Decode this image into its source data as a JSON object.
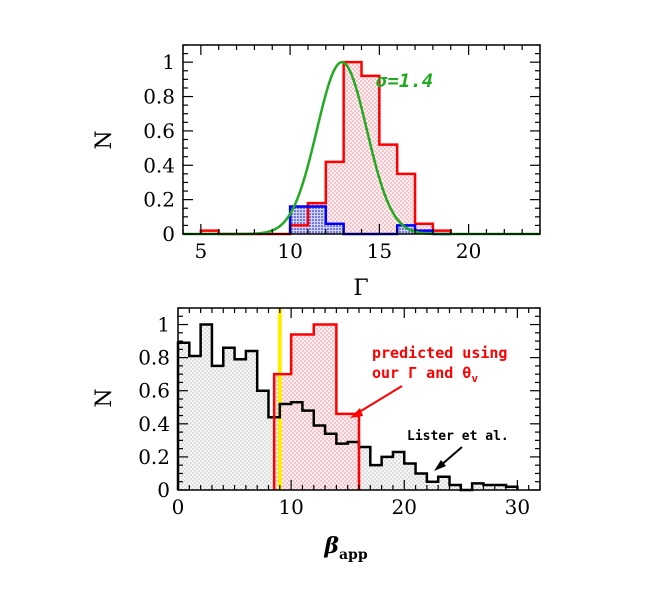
{
  "chart_data": [
    {
      "type": "histogram",
      "xlabel": "Γ",
      "ylabel": "N",
      "xlim": [
        4,
        24
      ],
      "ylim": [
        0,
        1.1
      ],
      "x_ticks": [
        5,
        10,
        15,
        20
      ],
      "y_ticks": [
        0,
        0.2,
        0.4,
        0.6,
        0.8,
        1
      ],
      "series": [
        {
          "style": "red step, red hatched fill",
          "color": "#ff0000",
          "bin_edges": [
            5,
            6,
            7,
            8,
            9,
            10,
            11,
            12,
            13,
            14,
            15,
            16,
            17,
            18,
            19
          ],
          "values": [
            0.02,
            0.0,
            0.0,
            0.0,
            0.0,
            0.05,
            0.18,
            0.42,
            1.0,
            0.92,
            0.52,
            0.35,
            0.06,
            0.02
          ]
        },
        {
          "style": "blue step, blue hatched fill",
          "color": "#0000ff",
          "bin_edges": [
            10,
            11,
            12,
            13,
            14,
            15,
            16,
            17,
            18,
            19
          ],
          "values": [
            0.16,
            0.16,
            0.06,
            0.0,
            0.0,
            0.0,
            0.05,
            0.02,
            0.0
          ]
        },
        {
          "style": "green gaussian curve",
          "color": "#22aa22",
          "mean": 12.9,
          "sigma": 1.4,
          "peak": 1.0
        }
      ],
      "annotations": [
        {
          "text": "σ=1.4",
          "color": "#22aa22"
        }
      ]
    },
    {
      "type": "histogram",
      "xlabel": "β",
      "xlabel_sub": "app",
      "ylabel": "N",
      "xlim": [
        0,
        32
      ],
      "ylim": [
        0,
        1.1
      ],
      "x_ticks": [
        0,
        10,
        20,
        30
      ],
      "y_ticks": [
        0,
        0.2,
        0.4,
        0.6,
        0.8,
        1
      ],
      "vline": {
        "x": 9,
        "color": "#ffee00"
      },
      "series": [
        {
          "style": "black step, grey dotted fill",
          "color": "#000000",
          "bin_edges": [
            0,
            1,
            2,
            3,
            4,
            5,
            6,
            7,
            8,
            9,
            10,
            11,
            12,
            13,
            14,
            15,
            16,
            17,
            18,
            19,
            20,
            21,
            22,
            23,
            24,
            25,
            26,
            27,
            28,
            29,
            30
          ],
          "values": [
            0.89,
            0.81,
            1.0,
            0.75,
            0.86,
            0.79,
            0.84,
            0.6,
            0.44,
            0.52,
            0.53,
            0.48,
            0.39,
            0.34,
            0.28,
            0.29,
            0.26,
            0.15,
            0.2,
            0.23,
            0.16,
            0.1,
            0.05,
            0.08,
            0.03,
            0.0,
            0.04,
            0.03,
            0.03,
            0.02
          ]
        },
        {
          "style": "red step, red hatched fill",
          "color": "#ff0000",
          "bin_edges": [
            8.5,
            10,
            12,
            14,
            16
          ],
          "values": [
            0.7,
            0.94,
            1.0,
            0.46
          ]
        }
      ],
      "annotations": [
        {
          "text": "predicted using",
          "color": "#ff0000"
        },
        {
          "text": "our Γ and θ",
          "sub": "v",
          "color": "#ff0000"
        },
        {
          "text": "Lister et al.",
          "color": "#000000"
        }
      ]
    }
  ]
}
